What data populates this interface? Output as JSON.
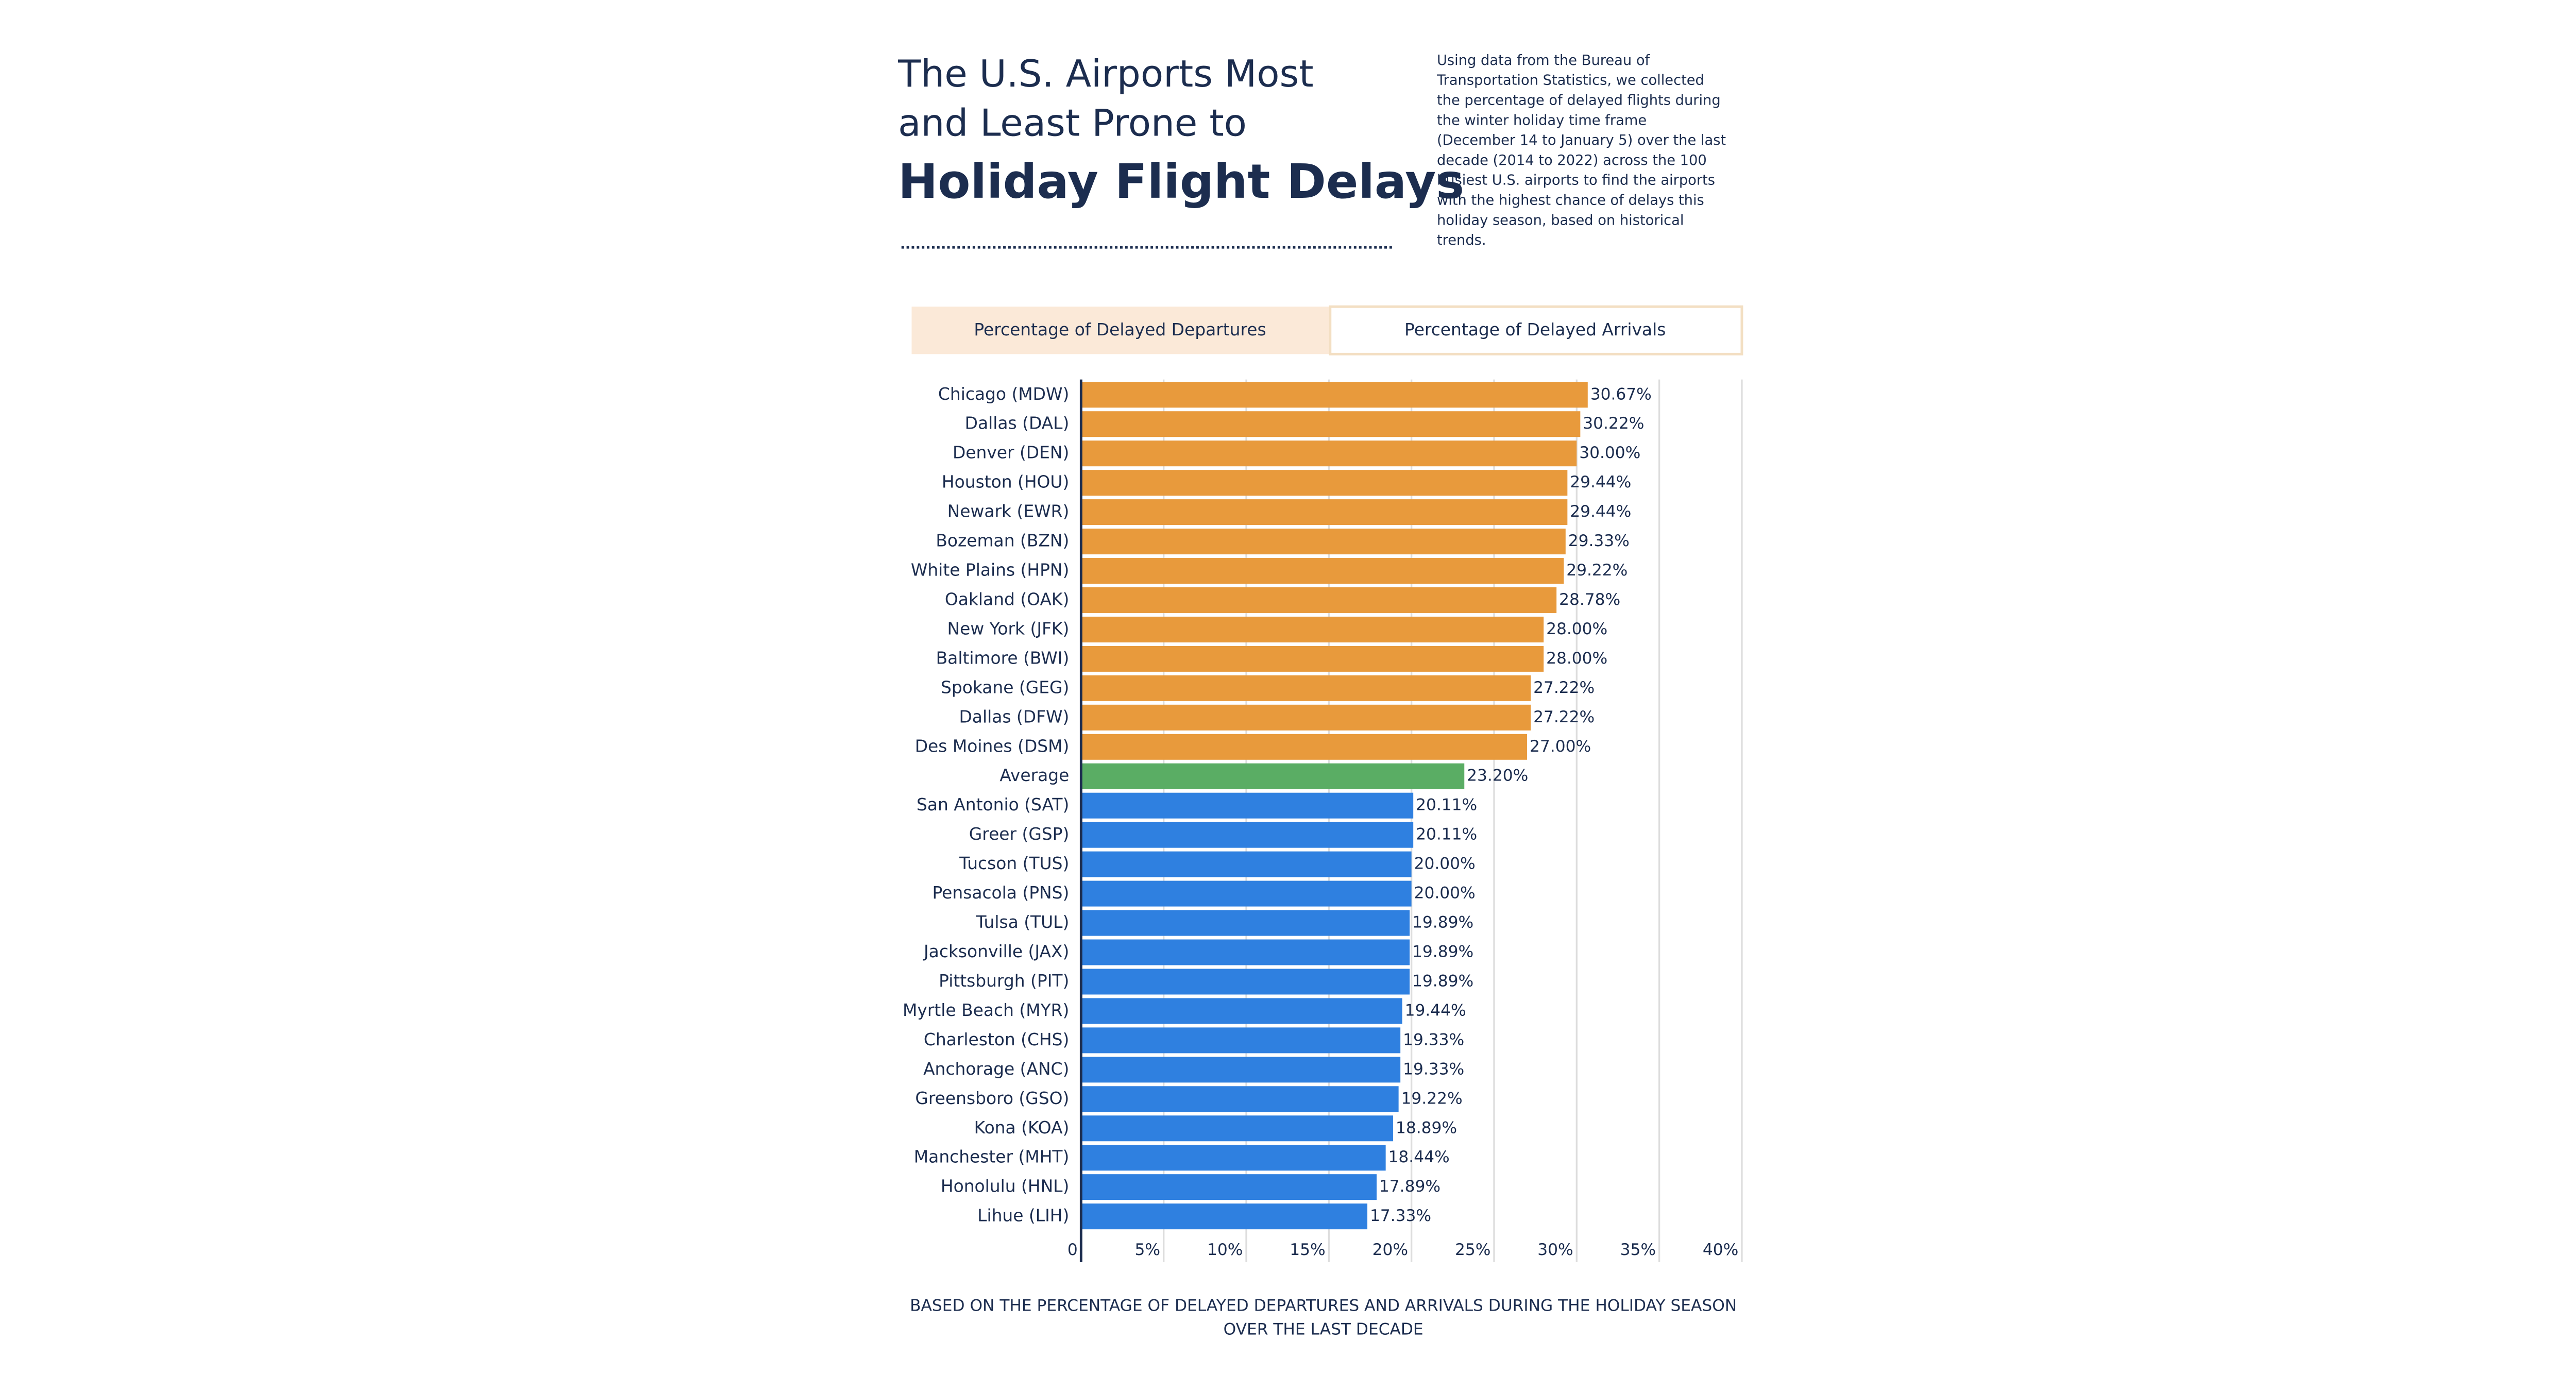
{
  "title_lines": [
    "The U.S. Airports Most",
    "and Least Prone to"
  ],
  "title_emphasis": "Holiday Flight Delays",
  "description": [
    "Using data from the Bureau of",
    "Transportation Statistics, we collected",
    "the percentage of delayed flights during",
    "the winter holiday time frame",
    "(December 14 to January 5) over the last",
    "decade (2014 to 2022) across the 100",
    "busiest U.S. airports to find the airports",
    "with the highest chance of delays this",
    "holiday season, based on historical",
    "trends."
  ],
  "tabs": [
    "Percentage of Delayed Departures",
    "Percentage of Delayed Arrivals"
  ],
  "footnote": [
    "BASED ON THE PERCENTAGE OF DELAYED DEPARTURES AND ARRIVALS DURING THE HOLIDAY SEASON",
    "OVER THE LAST DECADE"
  ],
  "chart_data": {
    "type": "hbar",
    "categories": [
      "Chicago (MDW)",
      "Dallas (DAL)",
      "Denver (DEN)",
      "Houston (HOU)",
      "Newark (EWR)",
      "Bozeman (BZN)",
      "White Plains (HPN)",
      "Oakland (OAK)",
      "New York (JFK)",
      "Baltimore (BWI)",
      "Spokane (GEG)",
      "Dallas (DFW)",
      "Des Moines (DSM)",
      "Average",
      "San Antonio (SAT)",
      "Greer (GSP)",
      "Tucson (TUS)",
      "Pensacola (PNS)",
      "Tulsa (TUL)",
      "Jacksonville (JAX)",
      "Pittsburgh (PIT)",
      "Myrtle Beach (MYR)",
      "Charleston (CHS)",
      "Anchorage (ANC)",
      "Greensboro (GSO)",
      "Kona (KOA)",
      "Manchester (MHT)",
      "Honolulu (HNL)",
      "Lihue (LIH)"
    ],
    "values": [
      30.67,
      30.22,
      30.0,
      29.44,
      29.44,
      29.33,
      29.22,
      28.78,
      28.0,
      28.0,
      27.22,
      27.22,
      27.0,
      23.2,
      20.11,
      20.11,
      20.0,
      20.0,
      19.89,
      19.89,
      19.89,
      19.44,
      19.33,
      19.33,
      19.22,
      18.89,
      18.44,
      17.89,
      17.33
    ],
    "value_labels": [
      "30.67%",
      "30.22%",
      "30.00%",
      "29.44%",
      "29.44%",
      "29.33%",
      "29.22%",
      "28.78%",
      "28.00%",
      "28.00%",
      "27.22%",
      "27.22%",
      "27.00%",
      "23.20%",
      "20.11%",
      "20.11%",
      "20.00%",
      "20.00%",
      "19.89%",
      "19.89%",
      "19.89%",
      "19.44%",
      "19.33%",
      "19.33%",
      "19.22%",
      "18.89%",
      "18.44%",
      "17.89%",
      "17.33%"
    ],
    "colors": [
      "#e89a3c",
      "#e89a3c",
      "#e89a3c",
      "#e89a3c",
      "#e89a3c",
      "#e89a3c",
      "#e89a3c",
      "#e89a3c",
      "#e89a3c",
      "#e89a3c",
      "#e89a3c",
      "#e89a3c",
      "#e89a3c",
      "#5aad64",
      "#2f80e0",
      "#2f80e0",
      "#2f80e0",
      "#2f80e0",
      "#2f80e0",
      "#2f80e0",
      "#2f80e0",
      "#2f80e0",
      "#2f80e0",
      "#2f80e0",
      "#2f80e0",
      "#2f80e0",
      "#2f80e0",
      "#2f80e0",
      "#2f80e0"
    ],
    "xlim": [
      0,
      40
    ],
    "xticks": [
      0,
      {
        "value": 5,
        "label": "5%"
      },
      {
        "value": 10,
        "label": "10%"
      },
      {
        "value": 15,
        "label": "15%"
      },
      {
        "value": 20,
        "label": "20%"
      },
      {
        "value": 25,
        "label": "25%"
      },
      {
        "value": 30,
        "label": "30%"
      },
      {
        "value": 35,
        "label": "35%"
      },
      {
        "value": 40,
        "label": "40%"
      }
    ],
    "grid": true
  }
}
